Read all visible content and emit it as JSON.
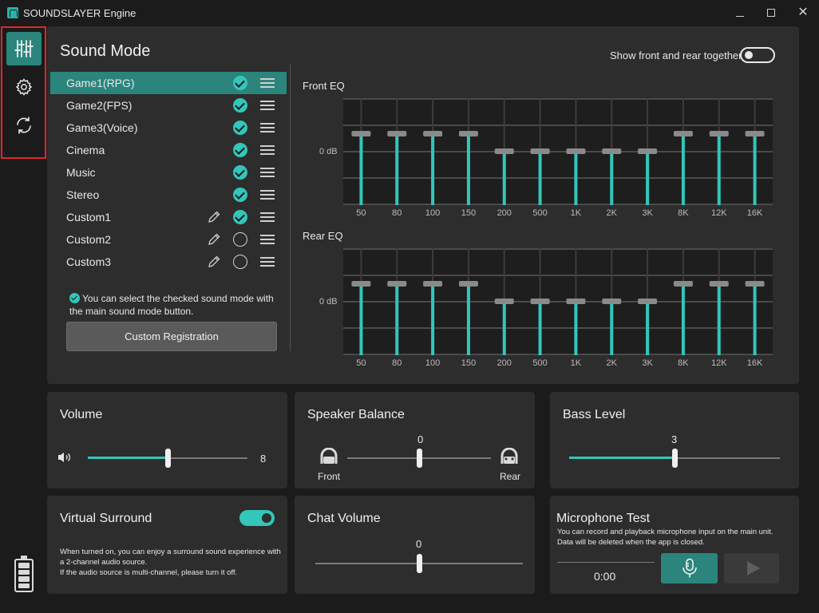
{
  "window": {
    "title": "SOUNDSLAYER Engine"
  },
  "rail": {
    "items": [
      "mixer-icon",
      "gear-icon",
      "sync-icon"
    ],
    "active": "mixer-icon"
  },
  "colors": {
    "accent": "#33c6bb",
    "accent_dark": "#2b857d",
    "panel": "#2d2d2d",
    "background": "#1b1b1b",
    "highlight": "#e0262a"
  },
  "sound_mode": {
    "title": "Sound Mode",
    "modes": [
      {
        "label": "Game1(RPG)",
        "checked": true,
        "editable": false,
        "selected": true
      },
      {
        "label": "Game2(FPS)",
        "checked": true,
        "editable": false,
        "selected": false
      },
      {
        "label": "Game3(Voice)",
        "checked": true,
        "editable": false,
        "selected": false
      },
      {
        "label": "Cinema",
        "checked": true,
        "editable": false,
        "selected": false
      },
      {
        "label": "Music",
        "checked": true,
        "editable": false,
        "selected": false
      },
      {
        "label": "Stereo",
        "checked": true,
        "editable": false,
        "selected": false
      },
      {
        "label": "Custom1",
        "checked": true,
        "editable": true,
        "selected": false
      },
      {
        "label": "Custom2",
        "checked": false,
        "editable": true,
        "selected": false
      },
      {
        "label": "Custom3",
        "checked": false,
        "editable": true,
        "selected": false
      }
    ],
    "hint": "You can select the checked sound mode with the main sound mode button.",
    "custom_registration": "Custom Registration",
    "show_together_label": "Show front and rear together",
    "show_together": false
  },
  "eq": {
    "zero_label": "0 dB",
    "bands": [
      "50",
      "80",
      "100",
      "150",
      "200",
      "500",
      "1K",
      "2K",
      "3K",
      "8K",
      "12K",
      "16K"
    ],
    "front": {
      "label": "Front EQ",
      "gains": [
        1,
        1,
        1,
        1,
        0,
        0,
        0,
        0,
        0,
        1,
        1,
        1
      ]
    },
    "rear": {
      "label": "Rear EQ",
      "gains": [
        1,
        1,
        1,
        1,
        0,
        0,
        0,
        0,
        0,
        1,
        1,
        1
      ]
    }
  },
  "volume": {
    "title": "Volume",
    "value": "8",
    "fraction": 0.5,
    "icon": "speaker-icon"
  },
  "speaker_balance": {
    "title": "Speaker Balance",
    "value": "0",
    "fraction": 0.5,
    "front_label": "Front",
    "rear_label": "Rear"
  },
  "bass_level": {
    "title": "Bass Level",
    "value": "3",
    "fraction": 0.5
  },
  "virtual_surround": {
    "title": "Virtual Surround",
    "enabled": true,
    "description": "When turned on, you can enjoy a surround sound experience with a 2-channel audio source.\nIf the audio source is multi-channel, please turn it off."
  },
  "chat_volume": {
    "title": "Chat Volume",
    "value": "0",
    "fraction": 0.5
  },
  "microphone_test": {
    "title": "Microphone Test",
    "description": "You can record and playback microphone input on the main unit.\nData will be deleted when the app is closed.",
    "time": "0:00"
  }
}
